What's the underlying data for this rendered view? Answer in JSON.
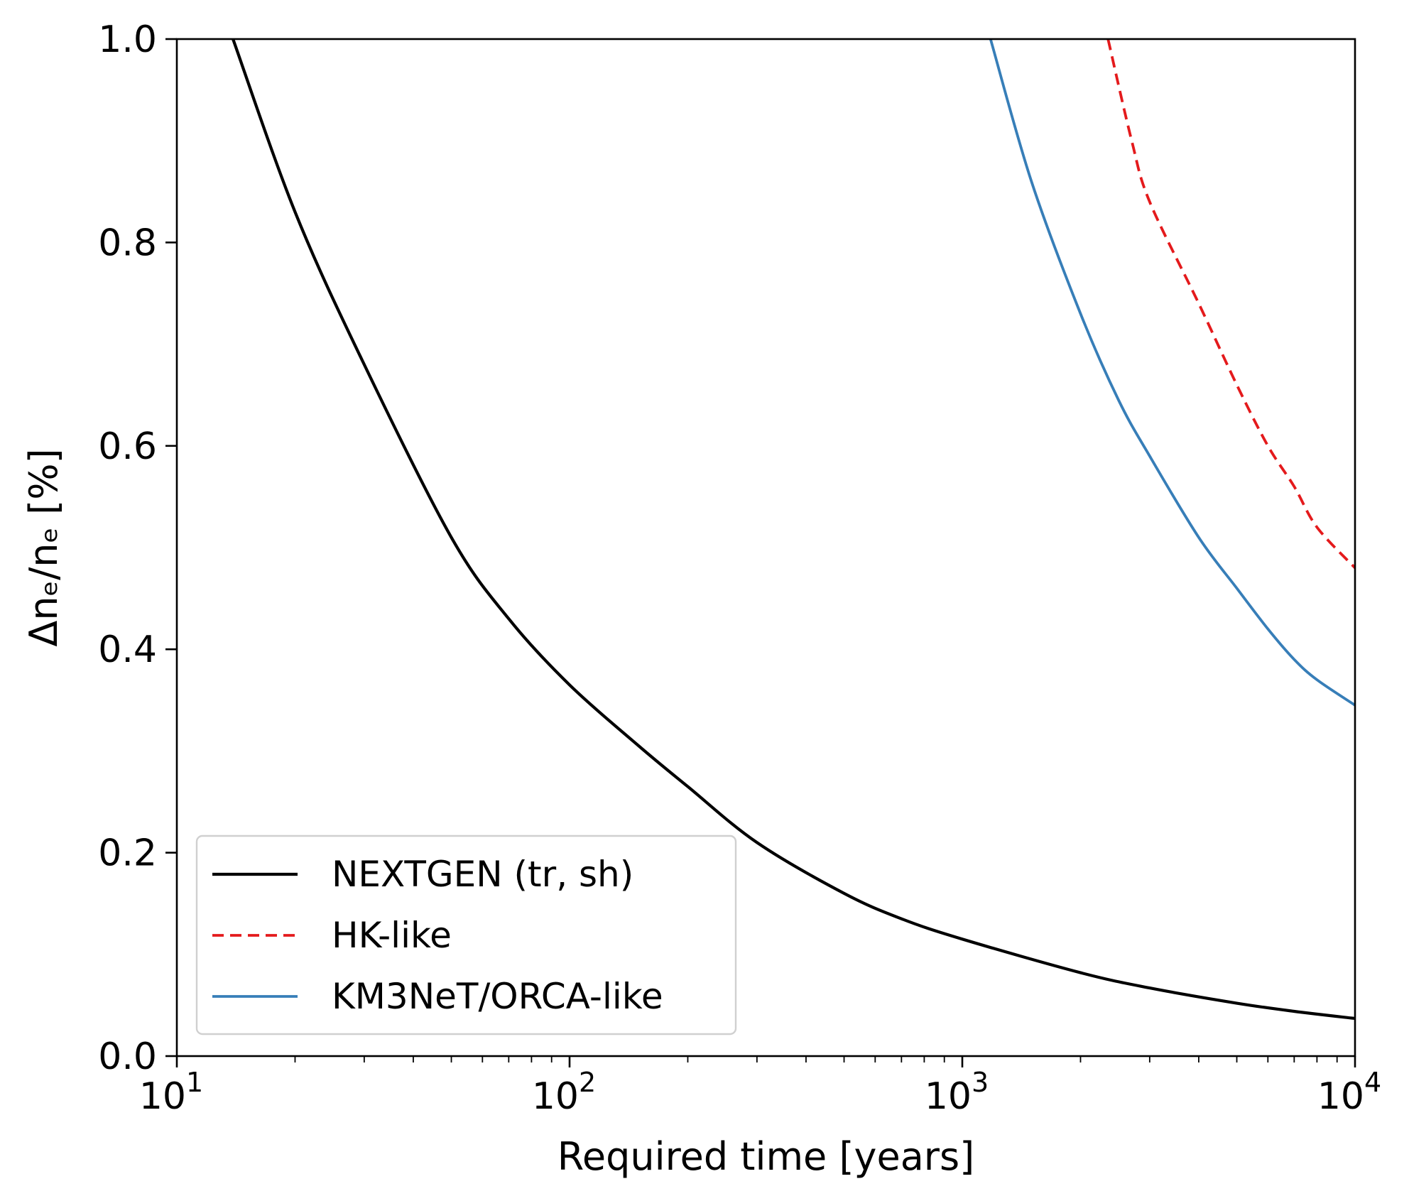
{
  "chart_data": {
    "type": "line",
    "xlabel": "Required time [years]",
    "ylabel": "Δnₑ/nₑ [%]",
    "xscale": "log",
    "xlim": [
      10,
      10000
    ],
    "ylim": [
      0,
      1.0
    ],
    "x_ticks": [
      {
        "value": 10,
        "base": "10",
        "exp": "1"
      },
      {
        "value": 100,
        "base": "10",
        "exp": "2"
      },
      {
        "value": 1000,
        "base": "10",
        "exp": "3"
      },
      {
        "value": 10000,
        "base": "10",
        "exp": "4"
      }
    ],
    "y_ticks": [
      {
        "value": 0.0,
        "label": "0.0"
      },
      {
        "value": 0.2,
        "label": "0.2"
      },
      {
        "value": 0.4,
        "label": "0.4"
      },
      {
        "value": 0.6,
        "label": "0.6"
      },
      {
        "value": 0.8,
        "label": "0.8"
      },
      {
        "value": 1.0,
        "label": "1.0"
      }
    ],
    "grid": false,
    "legend_position": "lower-left",
    "series": [
      {
        "name": "NEXTGEN (tr, sh)",
        "color": "#000000",
        "style": "solid",
        "x": [
          13.9,
          20,
          30,
          50,
          70,
          100,
          150,
          200,
          300,
          500,
          700,
          1000,
          2000,
          3000,
          5000,
          7000,
          10000
        ],
        "y": [
          1.0,
          0.83,
          0.68,
          0.51,
          0.43,
          0.365,
          0.305,
          0.265,
          0.21,
          0.16,
          0.135,
          0.115,
          0.082,
          0.067,
          0.052,
          0.044,
          0.037
        ]
      },
      {
        "name": "HK-like",
        "color": "#e41a1c",
        "style": "dashed",
        "x": [
          2350,
          2700,
          3000,
          4000,
          5000,
          6000,
          7000,
          8000,
          10000
        ],
        "y": [
          1.0,
          0.9,
          0.84,
          0.74,
          0.66,
          0.6,
          0.56,
          0.52,
          0.48
        ]
      },
      {
        "name": "KM3NeT/ORCA-like",
        "color": "#377eb8",
        "style": "solid",
        "x": [
          1180,
          1500,
          2000,
          2500,
          3000,
          4000,
          5000,
          6000,
          7000,
          8000,
          10000
        ],
        "y": [
          1.0,
          0.86,
          0.73,
          0.645,
          0.59,
          0.51,
          0.46,
          0.42,
          0.39,
          0.37,
          0.345
        ]
      }
    ]
  }
}
